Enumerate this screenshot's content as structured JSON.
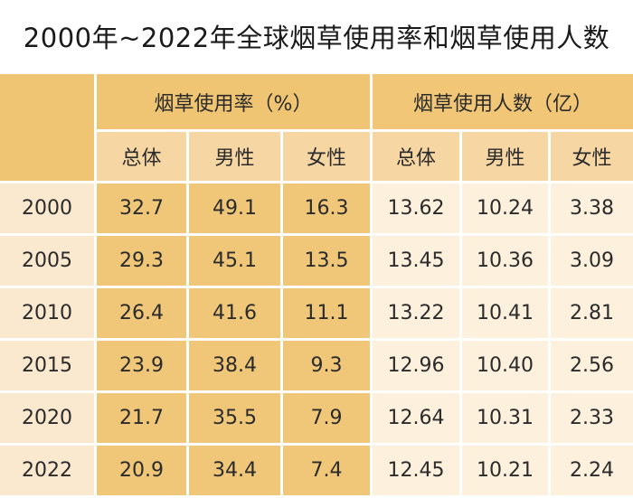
{
  "chart_data": {
    "type": "table",
    "title": "2000年~2022年全球烟草使用率和烟草使用人数",
    "column_groups": [
      {
        "label": "烟草使用率（%）",
        "columns": [
          "总体",
          "男性",
          "女性"
        ]
      },
      {
        "label": "烟草使用人数（亿）",
        "columns": [
          "总体",
          "男性",
          "女性"
        ]
      }
    ],
    "rows": [
      {
        "year": "2000",
        "values": [
          "32.7",
          "49.1",
          "16.3",
          "13.62",
          "10.24",
          "3.38"
        ]
      },
      {
        "year": "2005",
        "values": [
          "29.3",
          "45.1",
          "13.5",
          "13.45",
          "10.36",
          "3.09"
        ]
      },
      {
        "year": "2010",
        "values": [
          "26.4",
          "41.6",
          "11.1",
          "13.22",
          "10.41",
          "2.81"
        ]
      },
      {
        "year": "2015",
        "values": [
          "23.9",
          "38.4",
          "9.3",
          "12.96",
          "10.40",
          "2.56"
        ]
      },
      {
        "year": "2020",
        "values": [
          "21.7",
          "35.5",
          "7.9",
          "12.64",
          "10.31",
          "2.33"
        ]
      },
      {
        "year": "2022",
        "values": [
          "20.9",
          "34.4",
          "7.4",
          "12.45",
          "10.21",
          "2.24"
        ]
      }
    ]
  }
}
